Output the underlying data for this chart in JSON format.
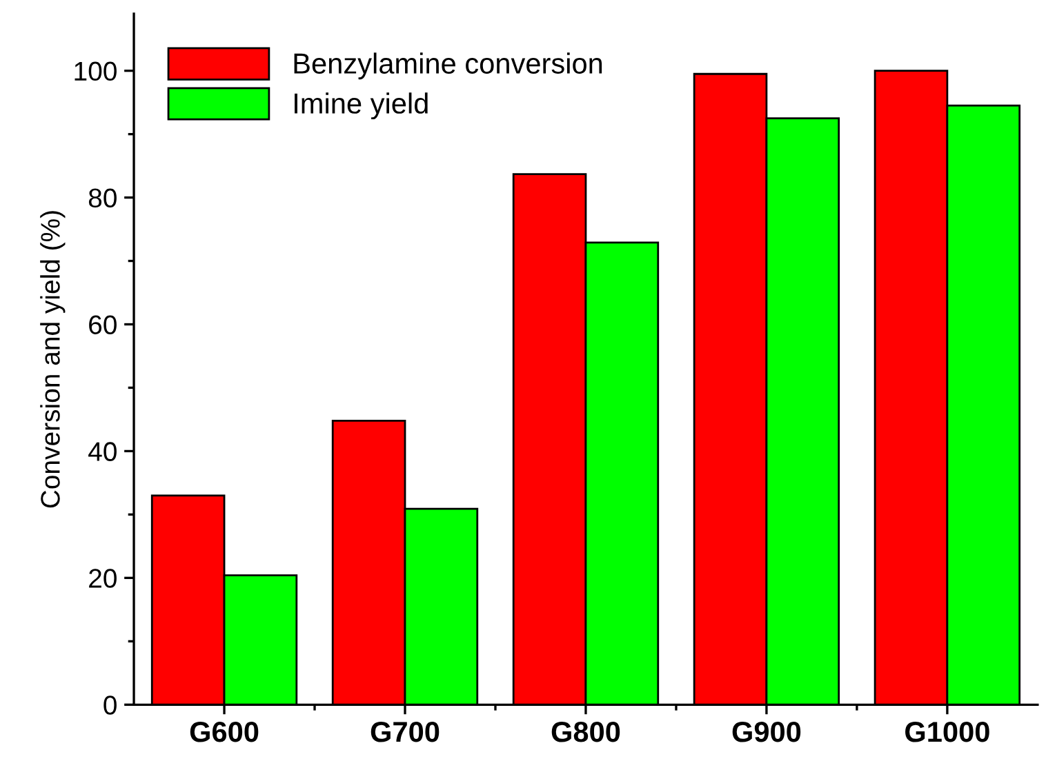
{
  "chart_data": {
    "type": "bar",
    "ylabel": "Conversion and yield (%)",
    "categories": [
      "G600",
      "G700",
      "G800",
      "G900",
      "G1000"
    ],
    "series": [
      {
        "name": "Benzylamine conversion",
        "color": "#ff0000",
        "values": [
          33.0,
          44.8,
          83.7,
          99.5,
          100.0
        ]
      },
      {
        "name": "Imine yield",
        "color": "#00ff00",
        "values": [
          20.4,
          30.9,
          72.9,
          92.5,
          94.5
        ]
      }
    ],
    "ylim": [
      0,
      109
    ],
    "yticks": [
      0,
      20,
      40,
      60,
      80,
      100
    ],
    "grid": false,
    "legend": "top left"
  }
}
